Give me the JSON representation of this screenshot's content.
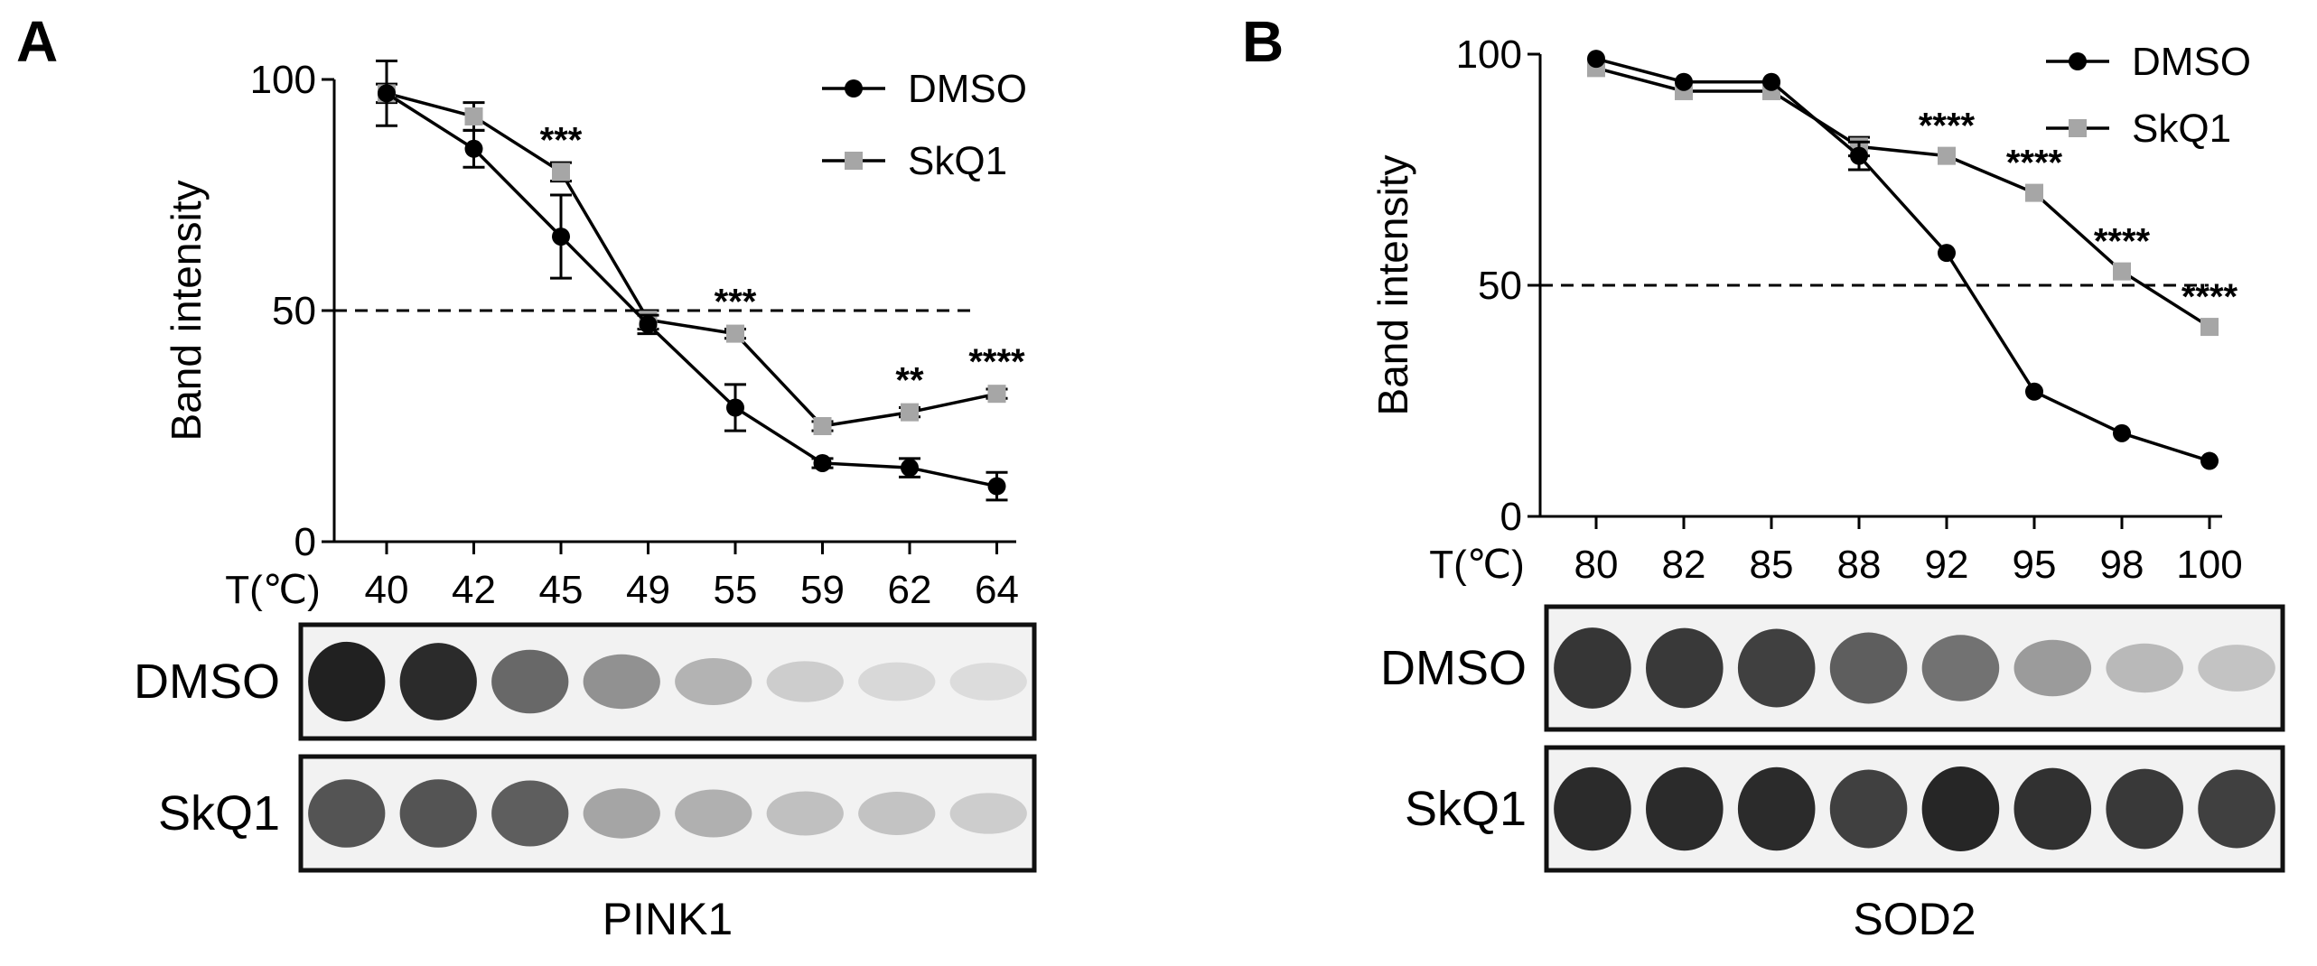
{
  "chart_data": [
    {
      "type": "line",
      "panel": "A",
      "ylabel": "Band intensity",
      "xlabel_prefix": "T(℃)",
      "ylim": [
        0,
        100
      ],
      "yticks": [
        "0",
        "50",
        "100"
      ],
      "categories": [
        "40",
        "42",
        "45",
        "49",
        "55",
        "59",
        "62",
        "64"
      ],
      "reference_line": 50,
      "series": [
        {
          "name": "DMSO",
          "marker": "circle",
          "color": "#000000",
          "values": [
            97,
            85,
            66,
            47,
            29,
            17,
            16,
            12
          ],
          "errors": [
            7,
            4,
            9,
            2,
            5,
            1,
            2,
            3
          ]
        },
        {
          "name": "SkQ1",
          "marker": "square",
          "color": "#a6a6a6",
          "values": [
            97,
            92,
            80,
            48,
            45,
            25,
            28,
            32
          ],
          "errors": [
            2,
            3,
            2,
            2,
            1,
            1,
            1,
            1
          ]
        }
      ],
      "annotations": [
        {
          "category": "45",
          "text": "***"
        },
        {
          "category": "55",
          "text": "***"
        },
        {
          "category": "62",
          "text": "**"
        },
        {
          "category": "64",
          "text": "****"
        }
      ],
      "blot": {
        "protein": "PINK1",
        "rows": [
          {
            "label": "DMSO",
            "intensities": [
              1.0,
              0.95,
              0.65,
              0.45,
              0.28,
              0.15,
              0.1,
              0.08
            ]
          },
          {
            "label": "SkQ1",
            "intensities": [
              0.75,
              0.75,
              0.7,
              0.35,
              0.3,
              0.22,
              0.2,
              0.15
            ]
          }
        ]
      }
    },
    {
      "type": "line",
      "panel": "B",
      "ylabel": "Band intensity",
      "xlabel_prefix": "T(℃)",
      "ylim": [
        0,
        100
      ],
      "yticks": [
        "0",
        "50",
        "100"
      ],
      "categories": [
        "80",
        "82",
        "85",
        "88",
        "92",
        "95",
        "98",
        "100"
      ],
      "reference_line": 50,
      "series": [
        {
          "name": "DMSO",
          "marker": "circle",
          "color": "#000000",
          "values": [
            99,
            94,
            94,
            78,
            57,
            27,
            18,
            12
          ],
          "errors": [
            0,
            0,
            0,
            3,
            0,
            0,
            0,
            0
          ]
        },
        {
          "name": "SkQ1",
          "marker": "square",
          "color": "#a6a6a6",
          "values": [
            97,
            92,
            92,
            80,
            78,
            70,
            53,
            41
          ],
          "errors": [
            0,
            0,
            0,
            2,
            0,
            0,
            0,
            0
          ]
        }
      ],
      "annotations": [
        {
          "category": "92",
          "text": "****"
        },
        {
          "category": "95",
          "text": "****"
        },
        {
          "category": "98",
          "text": "****"
        },
        {
          "category": "100",
          "text": "****"
        }
      ],
      "blot": {
        "protein": "SOD2",
        "rows": [
          {
            "label": "DMSO",
            "intensities": [
              0.9,
              0.88,
              0.85,
              0.7,
              0.6,
              0.4,
              0.25,
              0.2
            ]
          },
          {
            "label": "SkQ1",
            "intensities": [
              0.95,
              0.95,
              0.95,
              0.85,
              0.98,
              0.92,
              0.88,
              0.85
            ]
          }
        ]
      }
    }
  ]
}
